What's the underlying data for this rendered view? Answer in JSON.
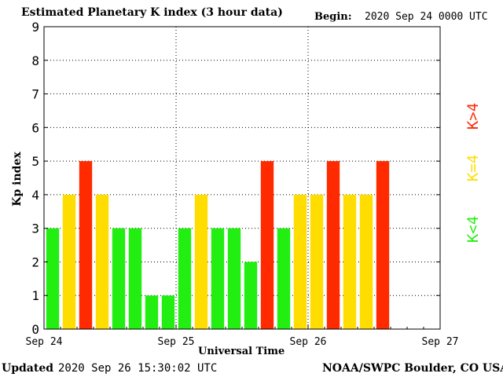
{
  "header": {
    "title": "Estimated Planetary K index (3 hour data)",
    "begin_label": "Begin:",
    "begin_value": "2020 Sep 24 0000 UTC"
  },
  "footer": {
    "updated_label": "Updated",
    "updated_value": "2020 Sep 26 15:30:02 UTC",
    "credit": "NOAA/SWPC Boulder, CO USA"
  },
  "legend": {
    "high": "K>4",
    "mid": "K=4",
    "low": "K<4"
  },
  "colors": {
    "low": "#22ee11",
    "mid": "#ffdd00",
    "high": "#ff2a00",
    "grid": "#000000",
    "background": "#ffffff"
  },
  "chart_data": {
    "type": "bar",
    "title": "Estimated Planetary K index (3 hour data)",
    "xlabel": "Universal Time",
    "ylabel": "Kp index",
    "ylim": [
      0,
      9
    ],
    "yticks": [
      "0",
      "1",
      "2",
      "3",
      "4",
      "5",
      "6",
      "7",
      "8",
      "9"
    ],
    "xlim_days": [
      0,
      3
    ],
    "xticks": [
      "Sep 24",
      "Sep 25",
      "Sep 26",
      "Sep 27"
    ],
    "grid": true,
    "interval_hours": 3,
    "values": [
      3,
      4,
      5,
      4,
      3,
      3,
      1,
      1,
      3,
      4,
      3,
      3,
      2,
      5,
      3,
      4,
      4,
      5,
      4,
      4,
      5
    ]
  }
}
